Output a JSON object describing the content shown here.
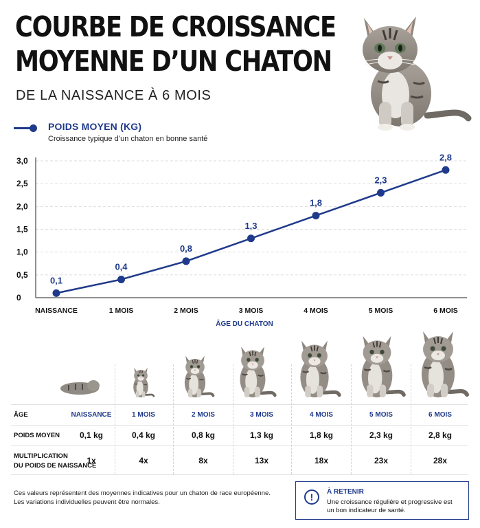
{
  "header": {
    "title_line1": "COURBE DE CROISSANCE",
    "title_line2": "MOYENNE D’UN CHATON",
    "subtitle": "DE LA NAISSANCE À 6 MOIS"
  },
  "legend": {
    "series_name": "POIDS MOYEN (KG)",
    "description": "Croissance typique d’un chaton en bonne santé"
  },
  "chart_data": {
    "type": "line",
    "title": "",
    "xlabel": "ÂGE DU CHATON",
    "ylabel": "",
    "categories": [
      "NAISSANCE",
      "1 MOIS",
      "2 MOIS",
      "3 MOIS",
      "4 MOIS",
      "5 MOIS",
      "6 MOIS"
    ],
    "series": [
      {
        "name": "POIDS MOYEN (KG)",
        "values": [
          0.1,
          0.4,
          0.8,
          1.3,
          1.8,
          2.3,
          2.8
        ],
        "value_labels": [
          "0,1",
          "0,4",
          "0,8",
          "1,3",
          "1,8",
          "2,3",
          "2,8"
        ]
      }
    ],
    "ylim": [
      0,
      3.0
    ],
    "yticks": [
      0,
      0.5,
      1.0,
      1.5,
      2.0,
      2.5,
      3.0
    ],
    "ytick_labels": [
      "0",
      "0,5",
      "1,0",
      "1,5",
      "2,0",
      "2,5",
      "3,0"
    ],
    "grid": true,
    "colors": {
      "line": "#1f3a8a",
      "grid": "#dddddd",
      "axis": "#222222"
    }
  },
  "table": {
    "row_labels": {
      "age": "ÂGE",
      "weight": "POIDS MOYEN",
      "mult_line1": "MULTIPLICATION",
      "mult_line2": "DU POIDS DE NAISSANCE"
    },
    "ages": [
      "NAISSANCE",
      "1 MOIS",
      "2 MOIS",
      "3 MOIS",
      "4 MOIS",
      "5 MOIS",
      "6 MOIS"
    ],
    "weights": [
      "0,1 kg",
      "0,4 kg",
      "0,8 kg",
      "1,3 kg",
      "1,8 kg",
      "2,3 kg",
      "2,8 kg"
    ],
    "multipliers": [
      "1x",
      "4x",
      "8x",
      "13x",
      "18x",
      "23x",
      "28x"
    ]
  },
  "footer": {
    "note_line1": "Ces valeurs représentent des moyennes indicatives pour un chaton de race européenne.",
    "note_line2": "Les variations individuelles peuvent être normales.",
    "callout_icon": "!",
    "callout_title": "À RETENIR",
    "callout_line1": "Une croissance régulière et progressive est",
    "callout_line2": "un bon indicateur de santé."
  },
  "images": {
    "hero": "tabby-kitten-sitting-photo",
    "kittens": [
      "newborn-kitten-lying",
      "kitten-1-month",
      "kitten-2-months",
      "kitten-3-months",
      "kitten-4-months",
      "kitten-5-months",
      "kitten-6-months"
    ],
    "kitten_growth_fraction": [
      0.18,
      0.45,
      0.63,
      0.77,
      0.86,
      0.93,
      1.0
    ]
  },
  "colors": {
    "accent": "#1f3a8a",
    "text": "#111111",
    "divider": "#e2e2e2"
  }
}
